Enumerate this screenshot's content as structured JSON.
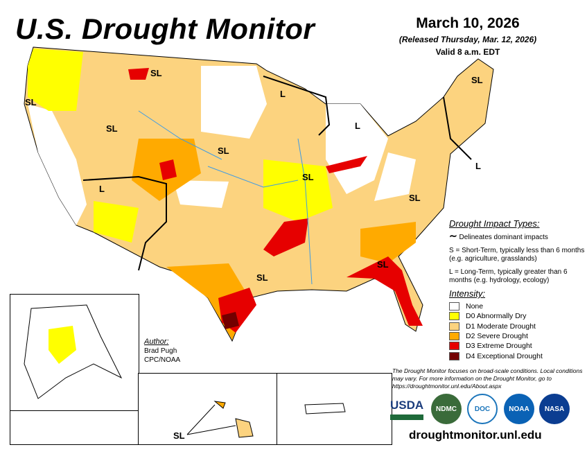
{
  "header": {
    "title": "U.S. Drought Monitor",
    "date": "March 10, 2026",
    "released": "(Released Thursday, Mar. 12, 2026)",
    "valid": "Valid 8 a.m. EDT"
  },
  "map_labels": [
    "SL",
    "SL",
    "SL",
    "SL",
    "L",
    "SL",
    "L",
    "SL",
    "L",
    "L",
    "SL",
    "SL",
    "SL",
    "SL",
    "SL"
  ],
  "impact_types": {
    "heading": "Drought Impact Types:",
    "delineates": "Delineates dominant impacts",
    "short_term": "S = Short-Term, typically less than 6 months (e.g. agriculture, grasslands)",
    "long_term": "L = Long-Term, typically greater than 6 months (e.g. hydrology, ecology)"
  },
  "intensity": {
    "heading": "Intensity:",
    "items": [
      {
        "label": "None",
        "color": "#ffffff"
      },
      {
        "label": "D0 Abnormally Dry",
        "color": "#ffff00"
      },
      {
        "label": "D1 Moderate Drought",
        "color": "#fcd37f"
      },
      {
        "label": "D2 Severe Drought",
        "color": "#ffaa00"
      },
      {
        "label": "D3 Extreme Drought",
        "color": "#e60000"
      },
      {
        "label": "D4 Exceptional Drought",
        "color": "#730000"
      }
    ]
  },
  "author": {
    "heading": "Author:",
    "name": "Brad Pugh",
    "org": "CPC/NOAA"
  },
  "note": "The Drought Monitor focuses on broad-scale conditions. Local conditions may vary. For more information on the Drought Monitor, go to https://droughtmonitor.unl.edu/About.aspx",
  "logos": [
    "USDA",
    "NDMC",
    "DOC",
    "NOAA",
    "NASA"
  ],
  "url": "droughtmonitor.unl.edu",
  "hawaii_label": "SL"
}
